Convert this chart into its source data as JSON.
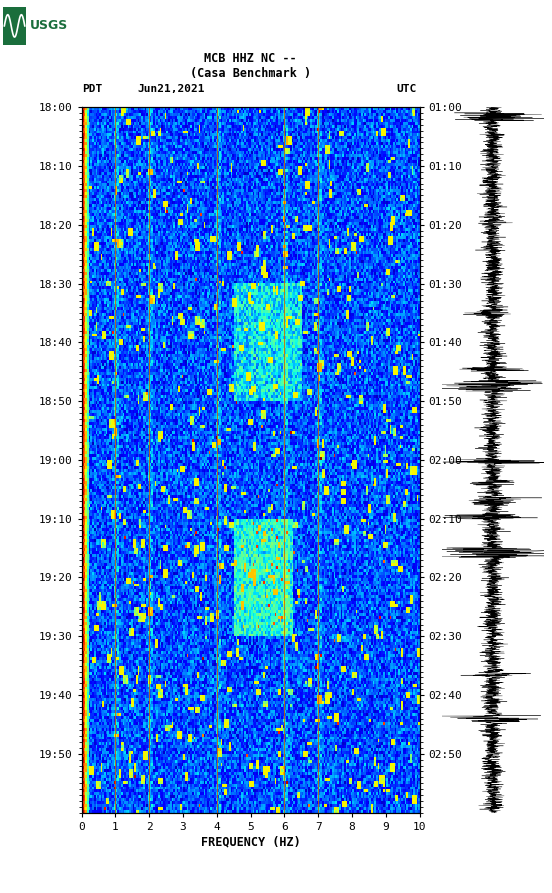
{
  "title_line1": "MCB HHZ NC --",
  "title_line2": "(Casa Benchmark )",
  "date_label": "Jun21,2021",
  "left_timezone": "PDT",
  "right_timezone": "UTC",
  "left_times": [
    "18:00",
    "18:10",
    "18:20",
    "18:30",
    "18:40",
    "18:50",
    "19:00",
    "19:10",
    "19:20",
    "19:30",
    "19:40",
    "19:50"
  ],
  "right_times": [
    "01:00",
    "01:10",
    "01:20",
    "01:30",
    "01:40",
    "01:50",
    "02:00",
    "02:10",
    "02:20",
    "02:30",
    "02:40",
    "02:50"
  ],
  "freq_min": 0,
  "freq_max": 10,
  "freq_ticks": [
    0,
    1,
    2,
    3,
    4,
    5,
    6,
    7,
    8,
    9,
    10
  ],
  "freq_label": "FREQUENCY (HZ)",
  "n_time_bins": 240,
  "n_freq_bins": 200,
  "colormap": "jet",
  "bg_color": "#ffffff",
  "logo_color": "#1a6e3c",
  "vertical_lines_freq": [
    1.0,
    2.0,
    4.0,
    6.0,
    7.0
  ],
  "vline_color": "#cc6600",
  "low_freq_red_cols": 4,
  "spec_vmin": 0.0,
  "spec_vmax": 1.0
}
